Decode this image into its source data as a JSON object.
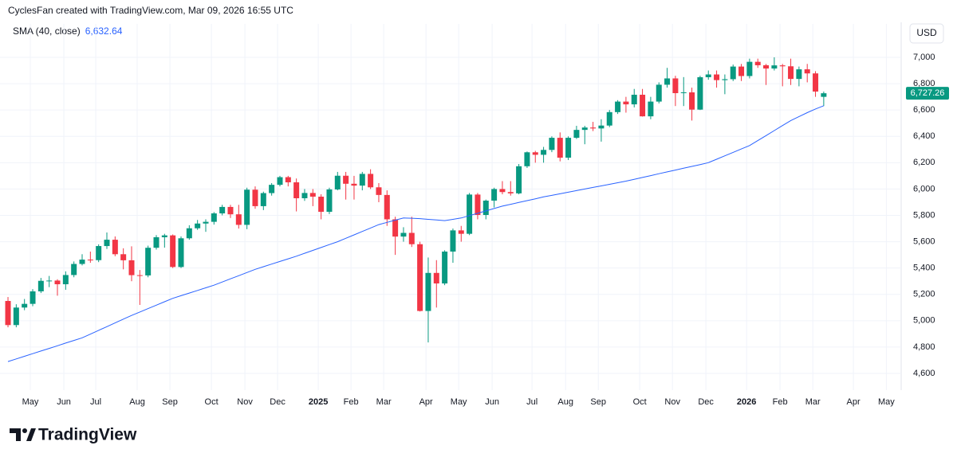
{
  "chart_data": {
    "type": "candlestick",
    "title": "CyclesFan created with TradingView.com, Mar 09, 2026 16:55 UTC",
    "currency": "USD",
    "brand": "TradingView",
    "up_color": "#089981",
    "down_color": "#f23645",
    "sma": {
      "name": "SMA (40, close)",
      "value_label": "6,632.64",
      "color": "#2962ff",
      "values": [
        4690,
        4710,
        4730,
        4750,
        4770,
        4790,
        4810,
        4830,
        4850,
        4870,
        4898,
        4927,
        4955,
        4983,
        5012,
        5040,
        5066,
        5092,
        5118,
        5144,
        5170,
        5190,
        5210,
        5230,
        5250,
        5270,
        5294,
        5318,
        5342,
        5366,
        5390,
        5410,
        5430,
        5450,
        5470,
        5490,
        5512,
        5534,
        5556,
        5578,
        5600,
        5626,
        5652,
        5678,
        5704,
        5730,
        5747,
        5764,
        5780,
        5778,
        5775,
        5770,
        5765,
        5760,
        5770,
        5780,
        5798,
        5816,
        5834,
        5852,
        5870,
        5884,
        5898,
        5912,
        5926,
        5940,
        5952,
        5964,
        5976,
        5988,
        6000,
        6012,
        6024,
        6036,
        6048,
        6060,
        6074,
        6088,
        6102,
        6116,
        6130,
        6144,
        6158,
        6172,
        6186,
        6200,
        6226,
        6252,
        6278,
        6304,
        6330,
        6368,
        6406,
        6444,
        6482,
        6520,
        6550,
        6580,
        6608,
        6632.64
      ]
    },
    "last_price_label": "6,727.26",
    "ohlc": [
      [
        5150,
        5180,
        4950,
        4967
      ],
      [
        4967,
        5125,
        4950,
        5100
      ],
      [
        5100,
        5165,
        5080,
        5128
      ],
      [
        5128,
        5240,
        5110,
        5223
      ],
      [
        5223,
        5325,
        5210,
        5303
      ],
      [
        5305,
        5340,
        5255,
        5305
      ],
      [
        5305,
        5315,
        5190,
        5277
      ],
      [
        5277,
        5375,
        5235,
        5347
      ],
      [
        5347,
        5450,
        5330,
        5431
      ],
      [
        5431,
        5505,
        5420,
        5464
      ],
      [
        5464,
        5525,
        5440,
        5460
      ],
      [
        5460,
        5580,
        5445,
        5567
      ],
      [
        5567,
        5670,
        5545,
        5615
      ],
      [
        5615,
        5640,
        5490,
        5505
      ],
      [
        5505,
        5550,
        5390,
        5459
      ],
      [
        5459,
        5565,
        5300,
        5346
      ],
      [
        5346,
        5385,
        5120,
        5344
      ],
      [
        5344,
        5570,
        5330,
        5554
      ],
      [
        5554,
        5650,
        5540,
        5634
      ],
      [
        5634,
        5660,
        5555,
        5648
      ],
      [
        5648,
        5655,
        5400,
        5408
      ],
      [
        5408,
        5640,
        5400,
        5626
      ],
      [
        5626,
        5725,
        5615,
        5702
      ],
      [
        5702,
        5765,
        5690,
        5738
      ],
      [
        5738,
        5770,
        5675,
        5751
      ],
      [
        5751,
        5825,
        5730,
        5815
      ],
      [
        5815,
        5880,
        5800,
        5864
      ],
      [
        5864,
        5880,
        5780,
        5808
      ],
      [
        5808,
        5880,
        5700,
        5728
      ],
      [
        5728,
        6010,
        5695,
        5995
      ],
      [
        5995,
        6020,
        5850,
        5870
      ],
      [
        5870,
        5980,
        5840,
        5969
      ],
      [
        5969,
        6045,
        5950,
        6032
      ],
      [
        6032,
        6100,
        6020,
        6090
      ],
      [
        6090,
        6100,
        6020,
        6051
      ],
      [
        6051,
        6080,
        5830,
        5930
      ],
      [
        5930,
        6000,
        5910,
        5970
      ],
      [
        5970,
        6000,
        5870,
        5942
      ],
      [
        5942,
        5960,
        5770,
        5827
      ],
      [
        5827,
        6010,
        5810,
        5997
      ],
      [
        5997,
        6130,
        5990,
        6101
      ],
      [
        6101,
        6130,
        5920,
        6040
      ],
      [
        6040,
        6100,
        5920,
        6026
      ],
      [
        6026,
        6130,
        5990,
        6115
      ],
      [
        6115,
        6150,
        6000,
        6013
      ],
      [
        6013,
        6045,
        5900,
        5955
      ],
      [
        5955,
        5990,
        5720,
        5770
      ],
      [
        5770,
        5790,
        5500,
        5639
      ],
      [
        5639,
        5710,
        5600,
        5667
      ],
      [
        5667,
        5790,
        5560,
        5581
      ],
      [
        5581,
        5600,
        5070,
        5074
      ],
      [
        5074,
        5480,
        4835,
        5363
      ],
      [
        5363,
        5460,
        5100,
        5283
      ],
      [
        5283,
        5535,
        5270,
        5525
      ],
      [
        5525,
        5700,
        5440,
        5686
      ],
      [
        5686,
        5720,
        5600,
        5660
      ],
      [
        5660,
        5970,
        5650,
        5958
      ],
      [
        5958,
        5970,
        5770,
        5803
      ],
      [
        5803,
        5920,
        5770,
        5912
      ],
      [
        5912,
        6010,
        5860,
        6000
      ],
      [
        6000,
        6060,
        5960,
        5977
      ],
      [
        5977,
        6060,
        5950,
        5967
      ],
      [
        5967,
        6190,
        5960,
        6173
      ],
      [
        6173,
        6285,
        6160,
        6279
      ],
      [
        6279,
        6290,
        6200,
        6260
      ],
      [
        6260,
        6320,
        6200,
        6297
      ],
      [
        6297,
        6400,
        6280,
        6389
      ],
      [
        6389,
        6430,
        6210,
        6238
      ],
      [
        6238,
        6400,
        6220,
        6389
      ],
      [
        6389,
        6480,
        6380,
        6449
      ],
      [
        6449,
        6480,
        6340,
        6467
      ],
      [
        6467,
        6510,
        6440,
        6460
      ],
      [
        6460,
        6530,
        6360,
        6482
      ],
      [
        6482,
        6600,
        6470,
        6584
      ],
      [
        6584,
        6675,
        6570,
        6664
      ],
      [
        6664,
        6700,
        6580,
        6643
      ],
      [
        6643,
        6760,
        6620,
        6716
      ],
      [
        6716,
        6760,
        6550,
        6552
      ],
      [
        6552,
        6700,
        6530,
        6664
      ],
      [
        6664,
        6810,
        6650,
        6792
      ],
      [
        6792,
        6920,
        6770,
        6840
      ],
      [
        6840,
        6860,
        6630,
        6728
      ],
      [
        6728,
        6850,
        6630,
        6734
      ],
      [
        6734,
        6770,
        6520,
        6603
      ],
      [
        6603,
        6860,
        6600,
        6849
      ],
      [
        6849,
        6900,
        6830,
        6870
      ],
      [
        6870,
        6900,
        6770,
        6827
      ],
      [
        6827,
        6870,
        6720,
        6834
      ],
      [
        6834,
        6945,
        6820,
        6930
      ],
      [
        6930,
        6950,
        6820,
        6858
      ],
      [
        6858,
        6990,
        6840,
        6966
      ],
      [
        6966,
        6990,
        6920,
        6940
      ],
      [
        6940,
        6950,
        6790,
        6915
      ],
      [
        6915,
        7000,
        6900,
        6939
      ],
      [
        6939,
        6950,
        6780,
        6932
      ],
      [
        6932,
        6990,
        6790,
        6836
      ],
      [
        6836,
        6930,
        6780,
        6909
      ],
      [
        6909,
        6950,
        6810,
        6878
      ],
      [
        6878,
        6895,
        6700,
        6740
      ],
      [
        6700,
        6740,
        6630,
        6727.26
      ]
    ],
    "xlim": [
      -0.97,
      108.4
    ],
    "xticks": [
      {
        "value": 2.71,
        "label": "May"
      },
      {
        "value": 6.78,
        "label": "Jun"
      },
      {
        "value": 10.65,
        "label": "Jul"
      },
      {
        "value": 15.68,
        "label": "Aug"
      },
      {
        "value": 19.65,
        "label": "Sep"
      },
      {
        "value": 24.69,
        "label": "Oct"
      },
      {
        "value": 28.75,
        "label": "Nov"
      },
      {
        "value": 32.72,
        "label": "Dec"
      },
      {
        "value": 37.66,
        "label": "2025"
      },
      {
        "value": 41.63,
        "label": "Feb"
      },
      {
        "value": 45.6,
        "label": "Mar"
      },
      {
        "value": 50.73,
        "label": "Apr"
      },
      {
        "value": 54.7,
        "label": "May"
      },
      {
        "value": 58.76,
        "label": "Jun"
      },
      {
        "value": 63.6,
        "label": "Jul"
      },
      {
        "value": 67.67,
        "label": "Aug"
      },
      {
        "value": 71.64,
        "label": "Sep"
      },
      {
        "value": 76.67,
        "label": "Oct"
      },
      {
        "value": 80.64,
        "label": "Nov"
      },
      {
        "value": 84.7,
        "label": "Dec"
      },
      {
        "value": 89.64,
        "label": "2026"
      },
      {
        "value": 93.7,
        "label": "Feb"
      },
      {
        "value": 97.68,
        "label": "Mar"
      },
      {
        "value": 102.6,
        "label": "Apr"
      },
      {
        "value": 106.6,
        "label": "May"
      }
    ],
    "ylim": [
      4473,
      7254
    ],
    "yticks": [
      {
        "value": 4600,
        "label": "4,600"
      },
      {
        "value": 4800,
        "label": "4,800"
      },
      {
        "value": 5000,
        "label": "5,000"
      },
      {
        "value": 5200,
        "label": "5,200"
      },
      {
        "value": 5400,
        "label": "5,400"
      },
      {
        "value": 5600,
        "label": "5,600"
      },
      {
        "value": 5800,
        "label": "5,800"
      },
      {
        "value": 6000,
        "label": "6,000"
      },
      {
        "value": 6200,
        "label": "6,200"
      },
      {
        "value": 6400,
        "label": "6,400"
      },
      {
        "value": 6600,
        "label": "6,600"
      },
      {
        "value": 6800,
        "label": "6,800"
      },
      {
        "value": 7000,
        "label": "7,000"
      }
    ],
    "grid": true
  }
}
